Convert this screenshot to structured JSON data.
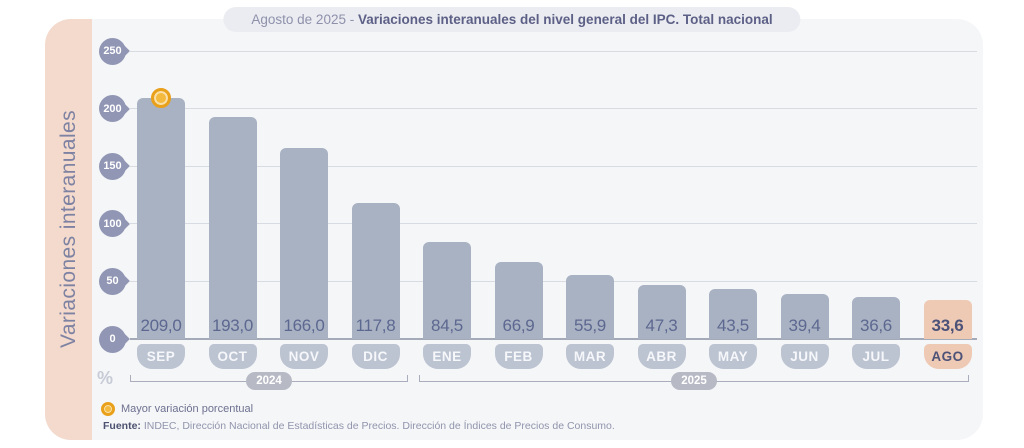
{
  "title": {
    "prefix": "Agosto de 2025 - ",
    "main": "Variaciones interanuales del nivel general del IPC. Total nacional"
  },
  "y_axis_label": "Variaciones interanuales",
  "unit_label": "%",
  "chart_data": {
    "type": "bar",
    "categories": [
      "SEP",
      "OCT",
      "NOV",
      "DIC",
      "ENE",
      "FEB",
      "MAR",
      "ABR",
      "MAY",
      "JUN",
      "JUL",
      "AGO"
    ],
    "values": [
      209.0,
      193.0,
      166.0,
      117.8,
      84.5,
      66.9,
      55.9,
      47.3,
      43.5,
      39.4,
      36.6,
      33.6
    ],
    "value_labels": [
      "209,0",
      "193,0",
      "166,0",
      "117,8",
      "84,5",
      "66,9",
      "55,9",
      "47,3",
      "43,5",
      "39,4",
      "36,6",
      "33,6"
    ],
    "title": "Agosto de 2025 - Variaciones interanuales del nivel general del IPC. Total nacional",
    "xlabel": "",
    "ylabel": "Variaciones interanuales",
    "y_ticks": [
      0,
      50,
      100,
      150,
      200,
      250
    ],
    "ylim": [
      0,
      250
    ],
    "grid": true,
    "legend_position": "bottom-left",
    "highlight_category": "AGO",
    "max_marker_category": "SEP",
    "year_groups": [
      {
        "label": "2024",
        "from": "SEP",
        "to": "DIC"
      },
      {
        "label": "2025",
        "from": "ENE",
        "to": "AGO"
      }
    ]
  },
  "legend": {
    "label": "Mayor variación porcentual"
  },
  "source": {
    "label": "Fuente:",
    "text": "INDEC, Dirección Nacional de Estadísticas de Precios. Dirección de Índices de Precios de Consumo."
  },
  "colors": {
    "bar": "#a9b2c3",
    "bar_highlight": "#eec9b3",
    "month_pill": "#bcc3d1",
    "value_text": "#5d6890",
    "highlight_text": "#4c5278",
    "axis_badge": "#9196b4",
    "marker_ring": "#e9a01b",
    "marker_fill": "#f3ba3e",
    "year_pill": "#b7bac5",
    "grid_line": "#d9dbe3",
    "baseline": "#a5aab8",
    "strip": "#f3dacd",
    "panel": "#f5f6f8",
    "title_pill": "#ebecf1"
  }
}
